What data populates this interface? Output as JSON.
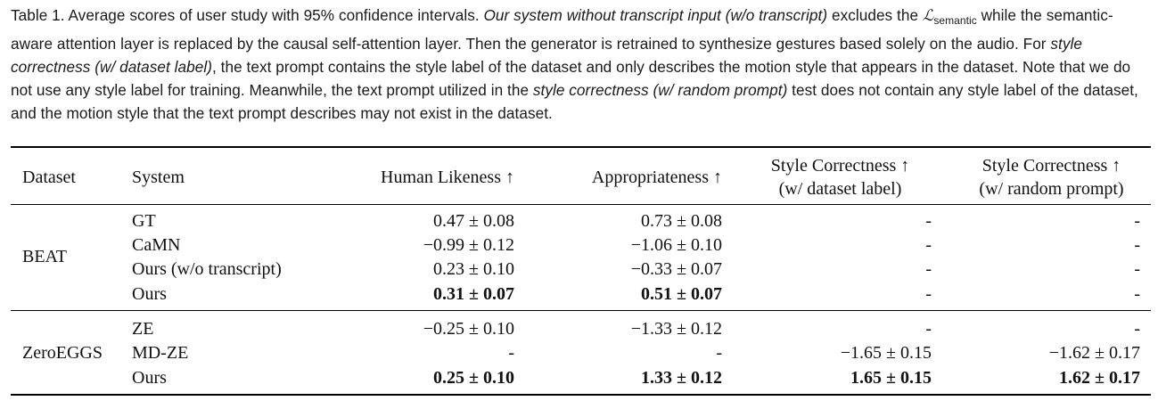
{
  "caption": {
    "s1": "Table 1. Average scores of user study with 95% confidence intervals. ",
    "s2_it": "Our system without transcript input (w/o transcript)",
    "s3": " excludes the ",
    "math_symbol": "ℒ",
    "math_sub": "semantic",
    "s4": " while the semantic-aware attention layer is replaced by the causal self-attention layer. Then the generator is retrained to synthesize gestures based solely on the audio. For ",
    "s5_it": "style correctness (w/ dataset label)",
    "s6": ", the text prompt contains the style label of the dataset and only describes the motion style that appears in the dataset. Note that we do not use any style label for training. Meanwhile, the text prompt utilized in the ",
    "s7_it": "style correctness (w/ random prompt)",
    "s8": " test does not contain any style label of the dataset, and the motion style that the text prompt describes may not exist in the dataset."
  },
  "table": {
    "headers": {
      "dataset": "Dataset",
      "system": "System",
      "human_likeness": "Human Likeness ↑",
      "appropriateness": "Appropriateness ↑",
      "style_label_l1": "Style Correctness ↑",
      "style_label_l2": "(w/ dataset label)",
      "style_random_l1": "Style Correctness ↑",
      "style_random_l2": "(w/ random prompt)"
    },
    "groups": [
      {
        "dataset": "BEAT",
        "rows": [
          {
            "system": "GT",
            "human": "0.47 ± 0.08",
            "approp": "0.73 ± 0.08",
            "style_label": "-",
            "style_random": "-"
          },
          {
            "system": "CaMN",
            "human": "−0.99 ± 0.12",
            "approp": "−1.06 ± 0.10",
            "style_label": "-",
            "style_random": "-"
          },
          {
            "system": "Ours (w/o transcript)",
            "human": "0.23 ± 0.10",
            "approp": "−0.33 ± 0.07",
            "style_label": "-",
            "style_random": "-"
          },
          {
            "system": "Ours",
            "human": "0.31 ± 0.07",
            "approp": "0.51 ± 0.07",
            "style_label": "-",
            "style_random": "-"
          }
        ]
      },
      {
        "dataset": "ZeroEGGS",
        "rows": [
          {
            "system": "ZE",
            "human": "−0.25 ± 0.10",
            "approp": "−1.33 ± 0.12",
            "style_label": "-",
            "style_random": "-"
          },
          {
            "system": "MD-ZE",
            "human": "-",
            "approp": "-",
            "style_label": "−1.65 ± 0.15",
            "style_random": "−1.62 ± 0.17"
          },
          {
            "system": "Ours",
            "human": "0.25 ± 0.10",
            "approp": "1.33 ± 0.12",
            "style_label": "1.65 ± 0.15",
            "style_random": "1.62 ± 0.17"
          }
        ]
      }
    ]
  }
}
